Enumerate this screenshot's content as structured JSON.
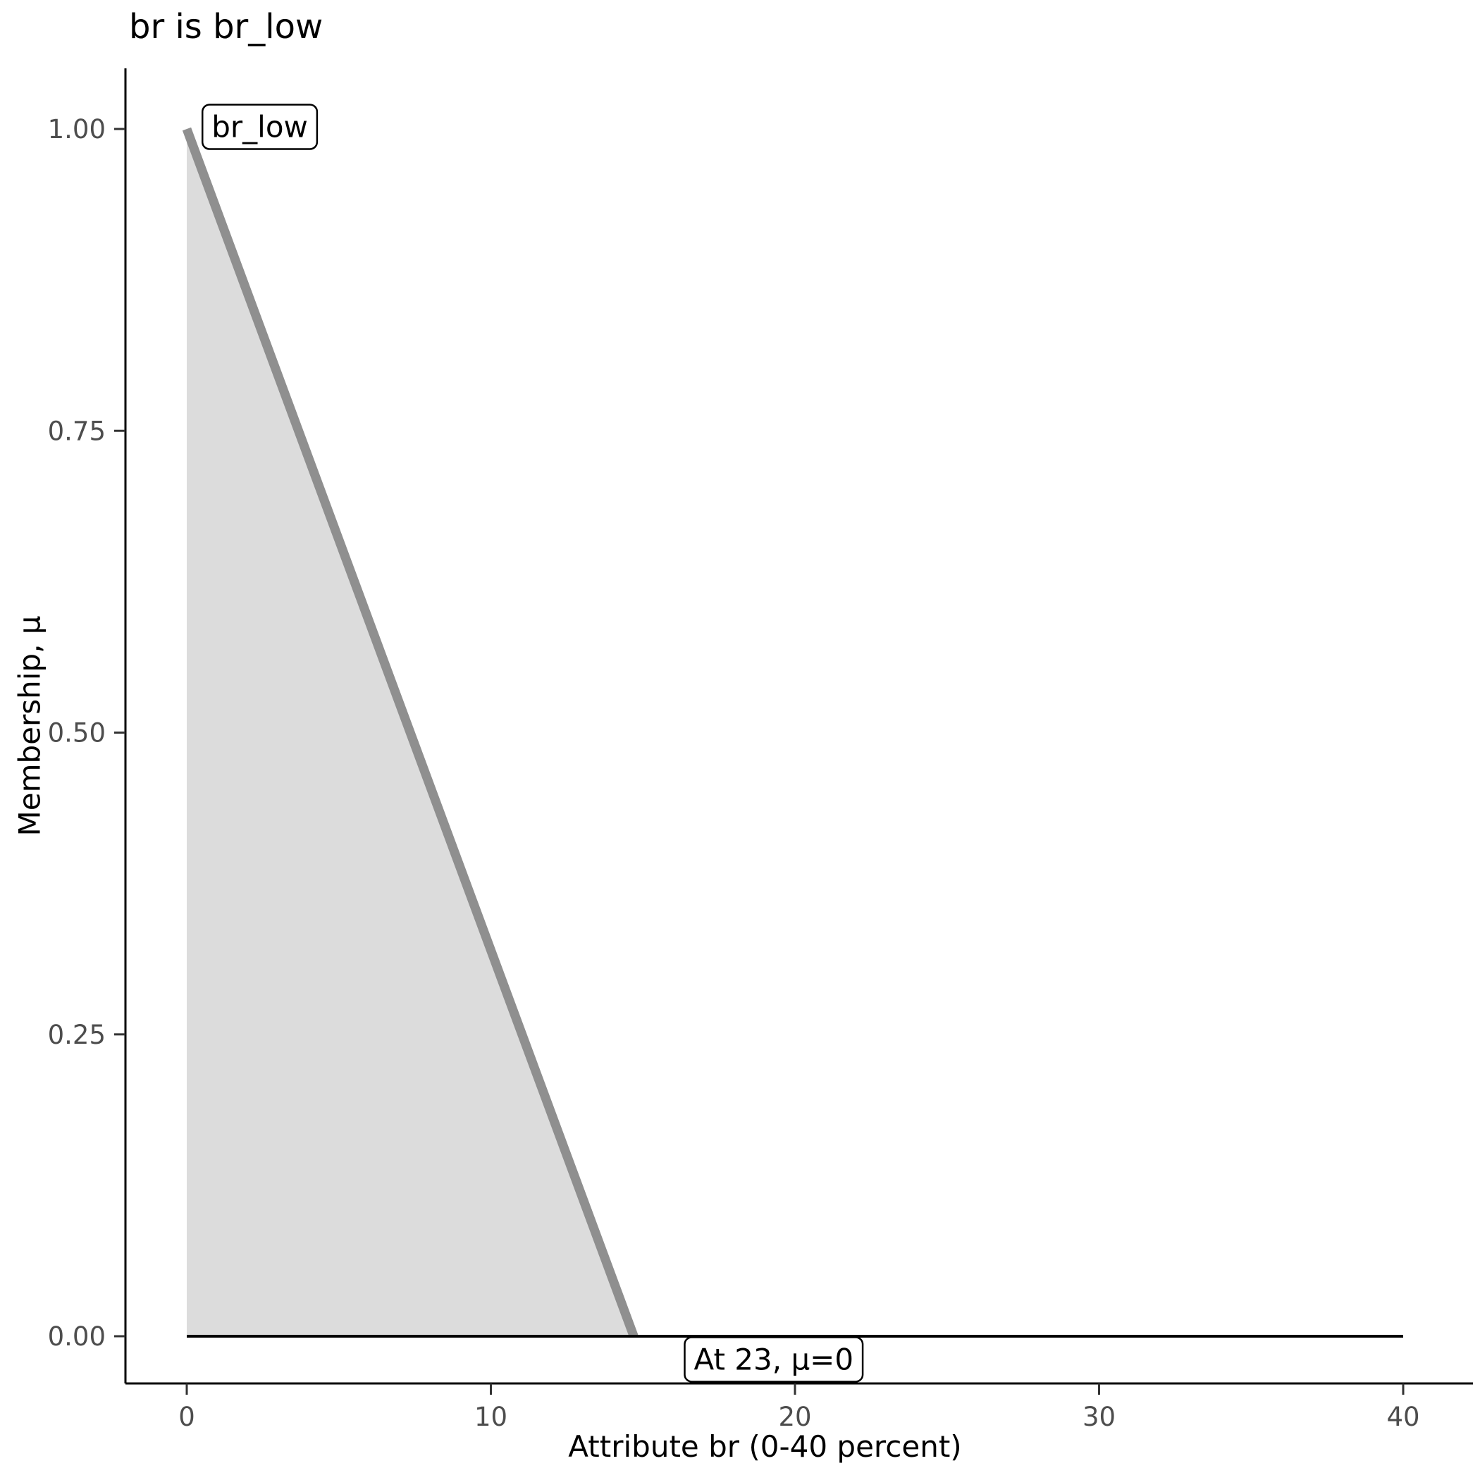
{
  "title": "br is br_low",
  "axes": {
    "x": {
      "label": "Attribute br (0-40 percent)",
      "ticks": [
        {
          "v": 0,
          "label": "0"
        },
        {
          "v": 10,
          "label": "10"
        },
        {
          "v": 20,
          "label": "20"
        },
        {
          "v": 30,
          "label": "30"
        },
        {
          "v": 40,
          "label": "40"
        }
      ]
    },
    "y": {
      "label": "Membership, μ",
      "ticks": [
        {
          "v": 0.0,
          "label": "0.00"
        },
        {
          "v": 0.25,
          "label": "0.25"
        },
        {
          "v": 0.5,
          "label": "0.50"
        },
        {
          "v": 0.75,
          "label": "0.75"
        },
        {
          "v": 1.0,
          "label": "1.00"
        }
      ]
    }
  },
  "chart_data": {
    "type": "area",
    "title": "br is br_low",
    "xlabel": "Attribute br (0-40 percent)",
    "ylabel": "Membership, μ",
    "xlim": [
      0,
      40
    ],
    "ylim": [
      0,
      1
    ],
    "grid": false,
    "series": [
      {
        "name": "br-low-membership",
        "points": [
          [
            0,
            1
          ],
          [
            14.7,
            0
          ]
        ],
        "stroke": "#8f8f8f",
        "stroke_width": 13,
        "fill": "#dcdcdc"
      },
      {
        "name": "zero-membership-line",
        "points": [
          [
            0,
            0
          ],
          [
            40,
            0
          ]
        ],
        "stroke": "#000000",
        "stroke_width": 4
      }
    ],
    "annotations": [
      {
        "text": "br_low",
        "x": 2.4,
        "y": 1.0,
        "anchor": "middle"
      },
      {
        "text": "At 23, μ=0",
        "x": 19.3,
        "y": -0.021,
        "anchor": "middle"
      }
    ],
    "colors": {
      "membership_line": "#8f8f8f",
      "membership_fill": "#dcdcdc",
      "axis": "#000000",
      "tick_label": "#4d4d4d"
    }
  }
}
